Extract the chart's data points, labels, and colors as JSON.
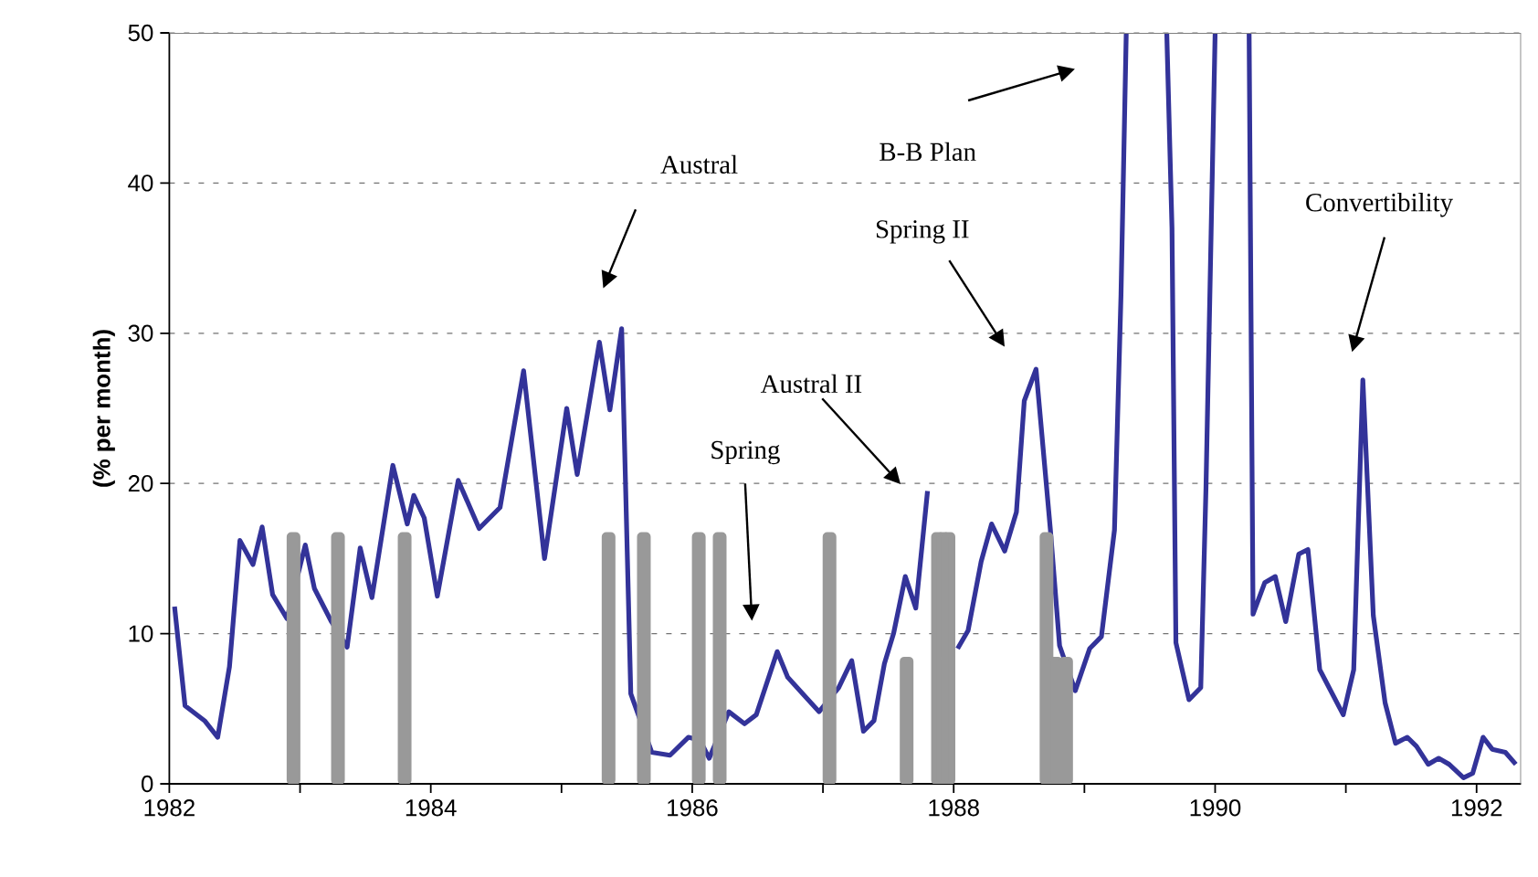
{
  "chart_data": {
    "type": "line",
    "ylabel": "(% per month)",
    "xlim": [
      1982,
      1992.34
    ],
    "ylim": [
      0,
      50
    ],
    "xticks": [
      1982,
      {
        "value": 1983,
        "label": null
      },
      1984,
      {
        "value": 1985,
        "label": null
      },
      1986,
      {
        "value": 1987,
        "label": null
      },
      1988,
      {
        "value": 1989,
        "label": null
      },
      1990,
      {
        "value": 1991,
        "label": null
      },
      1992
    ],
    "yticks": [
      0,
      10,
      20,
      30,
      40,
      50
    ],
    "grid": "y",
    "marker": "none",
    "line_style": "solid",
    "series": [
      {
        "color": "#333399",
        "x": [
          1982.04,
          1982.12,
          1982.27,
          1982.37,
          1982.46,
          1982.54,
          1982.64,
          1982.71,
          1982.79,
          1982.9,
          1983.04,
          1983.11,
          1983.24,
          1983.36,
          1983.46,
          1983.55,
          1983.71,
          1983.82,
          1983.87,
          1983.95,
          1984.05,
          1984.21,
          1984.37,
          1984.53,
          1984.71,
          1984.87,
          1985.04,
          1985.12,
          1985.29,
          1985.37,
          1985.46,
          1985.53,
          1985.69,
          1985.83,
          1985.97,
          1986.06,
          1986.13,
          1986.28,
          1986.4,
          1986.49,
          1986.65,
          1986.73,
          1986.97,
          1987.12,
          1987.22,
          1987.31,
          1987.39,
          1987.47,
          1987.54,
          1987.63,
          1987.71,
          1987.8,
          1987.9,
          1988.03,
          1988.11,
          1988.21,
          1988.29,
          1988.39,
          1988.48,
          1988.54,
          1988.63,
          1988.74,
          1988.81,
          1988.93,
          1989.04,
          1989.13,
          1989.23,
          1989.28,
          1989.32,
          1989.47,
          1989.63,
          1989.67,
          1989.7,
          1989.8,
          1989.89,
          1989.93,
          1990.0,
          1990.13,
          1990.26,
          1990.29,
          1990.38,
          1990.46,
          1990.54,
          1990.64,
          1990.71,
          1990.8,
          1990.98,
          1991.06,
          1991.13,
          1991.21,
          1991.3,
          1991.38,
          1991.47,
          1991.54,
          1991.63,
          1991.71,
          1991.79,
          1991.9,
          1991.97,
          1992.05,
          1992.12,
          1992.22,
          1992.3
        ],
        "values": [
          11.8,
          5.2,
          4.2,
          3.1,
          7.8,
          16.2,
          14.6,
          17.1,
          12.6,
          11.0,
          15.9,
          13.0,
          10.8,
          9.1,
          15.7,
          12.4,
          21.2,
          17.3,
          19.2,
          17.7,
          12.5,
          20.2,
          17.0,
          18.4,
          27.5,
          15.0,
          25.0,
          20.6,
          29.4,
          24.9,
          30.3,
          6.0,
          2.1,
          1.9,
          3.1,
          2.9,
          1.7,
          4.8,
          4.0,
          4.6,
          8.8,
          7.1,
          4.8,
          6.4,
          8.2,
          3.5,
          4.2,
          8.0,
          10.0,
          13.8,
          11.7,
          19.5,
          null,
          9.0,
          10.2,
          14.8,
          17.3,
          15.5,
          18.1,
          25.5,
          27.6,
          16.9,
          9.2,
          6.2,
          9.0,
          9.8,
          16.9,
          32.6,
          50,
          null,
          50,
          37.0,
          9.4,
          5.6,
          6.4,
          19.7,
          50,
          null,
          50,
          11.3,
          13.4,
          13.8,
          10.8,
          15.3,
          15.6,
          7.6,
          4.6,
          7.6,
          26.9,
          11.2,
          5.4,
          2.7,
          3.1,
          2.5,
          1.3,
          1.7,
          1.3,
          0.4,
          0.7,
          3.1,
          2.3,
          2.1,
          1.3
        ]
      },
      {
        "type": "bar",
        "color": "#999999",
        "x": [
          1982.95,
          1983.29,
          1983.8,
          1985.36,
          1985.63,
          1986.05,
          1986.21,
          1987.05,
          1987.64,
          1987.88,
          1987.92,
          1987.96,
          1988.71,
          1988.78,
          1988.86
        ],
        "values": [
          16.7,
          16.7,
          16.7,
          16.7,
          16.7,
          16.7,
          16.7,
          16.7,
          8.4,
          16.7,
          16.7,
          16.7,
          16.7,
          8.4,
          8.4
        ]
      }
    ],
    "annotations": [
      "Austral",
      "B-B Plan",
      "Spring II",
      "Austral II",
      "Spring",
      "Convertibility"
    ]
  }
}
